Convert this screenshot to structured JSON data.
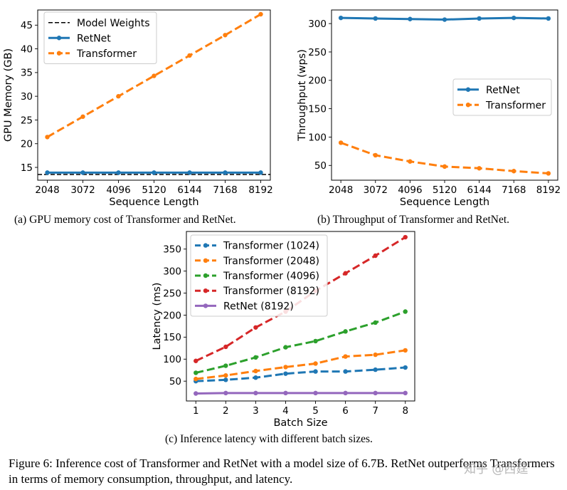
{
  "captions": {
    "a": "(a) GPU memory cost of Transformer and RetNet.",
    "b": "(b) Throughput of Transformer and RetNet.",
    "c": "(c) Inference latency with different batch sizes.",
    "figure": "Figure 6: Inference cost of Transformer and RetNet with a model size of 6.7B. RetNet outperforms Transformers in terms of memory consumption, throughput, and latency."
  },
  "watermark": "知乎 @西莛",
  "colors": {
    "blue": "#1f77b4",
    "orange": "#ff7f0e",
    "green": "#2ca02c",
    "red": "#d62728",
    "purple": "#9467bd",
    "black": "#000000"
  },
  "chart_data": [
    {
      "id": "a",
      "type": "line",
      "xlabel": "Sequence Length",
      "ylabel": "GPU Memory (GB)",
      "x": [
        2048,
        3072,
        4096,
        5120,
        6144,
        7168,
        8192
      ],
      "ylim": [
        12.3,
        48.2
      ],
      "yticks": [
        15,
        20,
        25,
        30,
        35,
        40,
        45
      ],
      "legend_position": "upper-left",
      "hlines": [
        {
          "name": "Model Weights",
          "value": 13.5,
          "color": "#000000",
          "style": "dashed"
        }
      ],
      "series": [
        {
          "name": "RetNet",
          "color": "#1f77b4",
          "style": "solid",
          "values": [
            13.9,
            13.9,
            13.9,
            13.9,
            13.9,
            13.9,
            13.9
          ]
        },
        {
          "name": "Transformer",
          "color": "#ff7f0e",
          "style": "dashed",
          "values": [
            21.4,
            25.7,
            30.0,
            34.3,
            38.6,
            42.9,
            47.3
          ]
        }
      ]
    },
    {
      "id": "b",
      "type": "line",
      "xlabel": "Sequence Length",
      "ylabel": "Throughput (wps)",
      "x": [
        2048,
        3072,
        4096,
        5120,
        6144,
        7168,
        8192
      ],
      "ylim": [
        24,
        324
      ],
      "yticks": [
        50,
        100,
        150,
        200,
        250,
        300
      ],
      "legend_position": "center-right",
      "series": [
        {
          "name": "RetNet",
          "color": "#1f77b4",
          "style": "solid",
          "values": [
            310,
            309,
            308,
            307,
            309,
            310,
            309
          ]
        },
        {
          "name": "Transformer",
          "color": "#ff7f0e",
          "style": "dashed",
          "values": [
            90,
            68,
            57,
            48,
            45,
            40,
            36
          ]
        }
      ]
    },
    {
      "id": "c",
      "type": "line",
      "xlabel": "Batch Size",
      "ylabel": "Latency (ms)",
      "x": [
        1,
        2,
        3,
        4,
        5,
        6,
        7,
        8
      ],
      "ylim": [
        5,
        390
      ],
      "yticks": [
        50,
        100,
        150,
        200,
        250,
        300,
        350
      ],
      "legend_position": "upper-left",
      "series": [
        {
          "name": "Transformer (1024)",
          "color": "#1f77b4",
          "style": "dashed",
          "values": [
            50,
            53,
            58,
            67,
            72,
            72,
            76,
            81
          ]
        },
        {
          "name": "Transformer (2048)",
          "color": "#ff7f0e",
          "style": "dashed",
          "values": [
            55,
            63,
            73,
            82,
            90,
            106,
            110,
            120
          ]
        },
        {
          "name": "Transformer (4096)",
          "color": "#2ca02c",
          "style": "dashed",
          "values": [
            69,
            85,
            104,
            127,
            141,
            163,
            183,
            208
          ]
        },
        {
          "name": "Transformer (8192)",
          "color": "#d62728",
          "style": "dashed",
          "values": [
            96,
            128,
            172,
            208,
            255,
            295,
            335,
            377
          ]
        },
        {
          "name": "RetNet (8192)",
          "color": "#9467bd",
          "style": "solid",
          "values": [
            22,
            23,
            23,
            23,
            23,
            23,
            23,
            23
          ]
        }
      ]
    }
  ]
}
